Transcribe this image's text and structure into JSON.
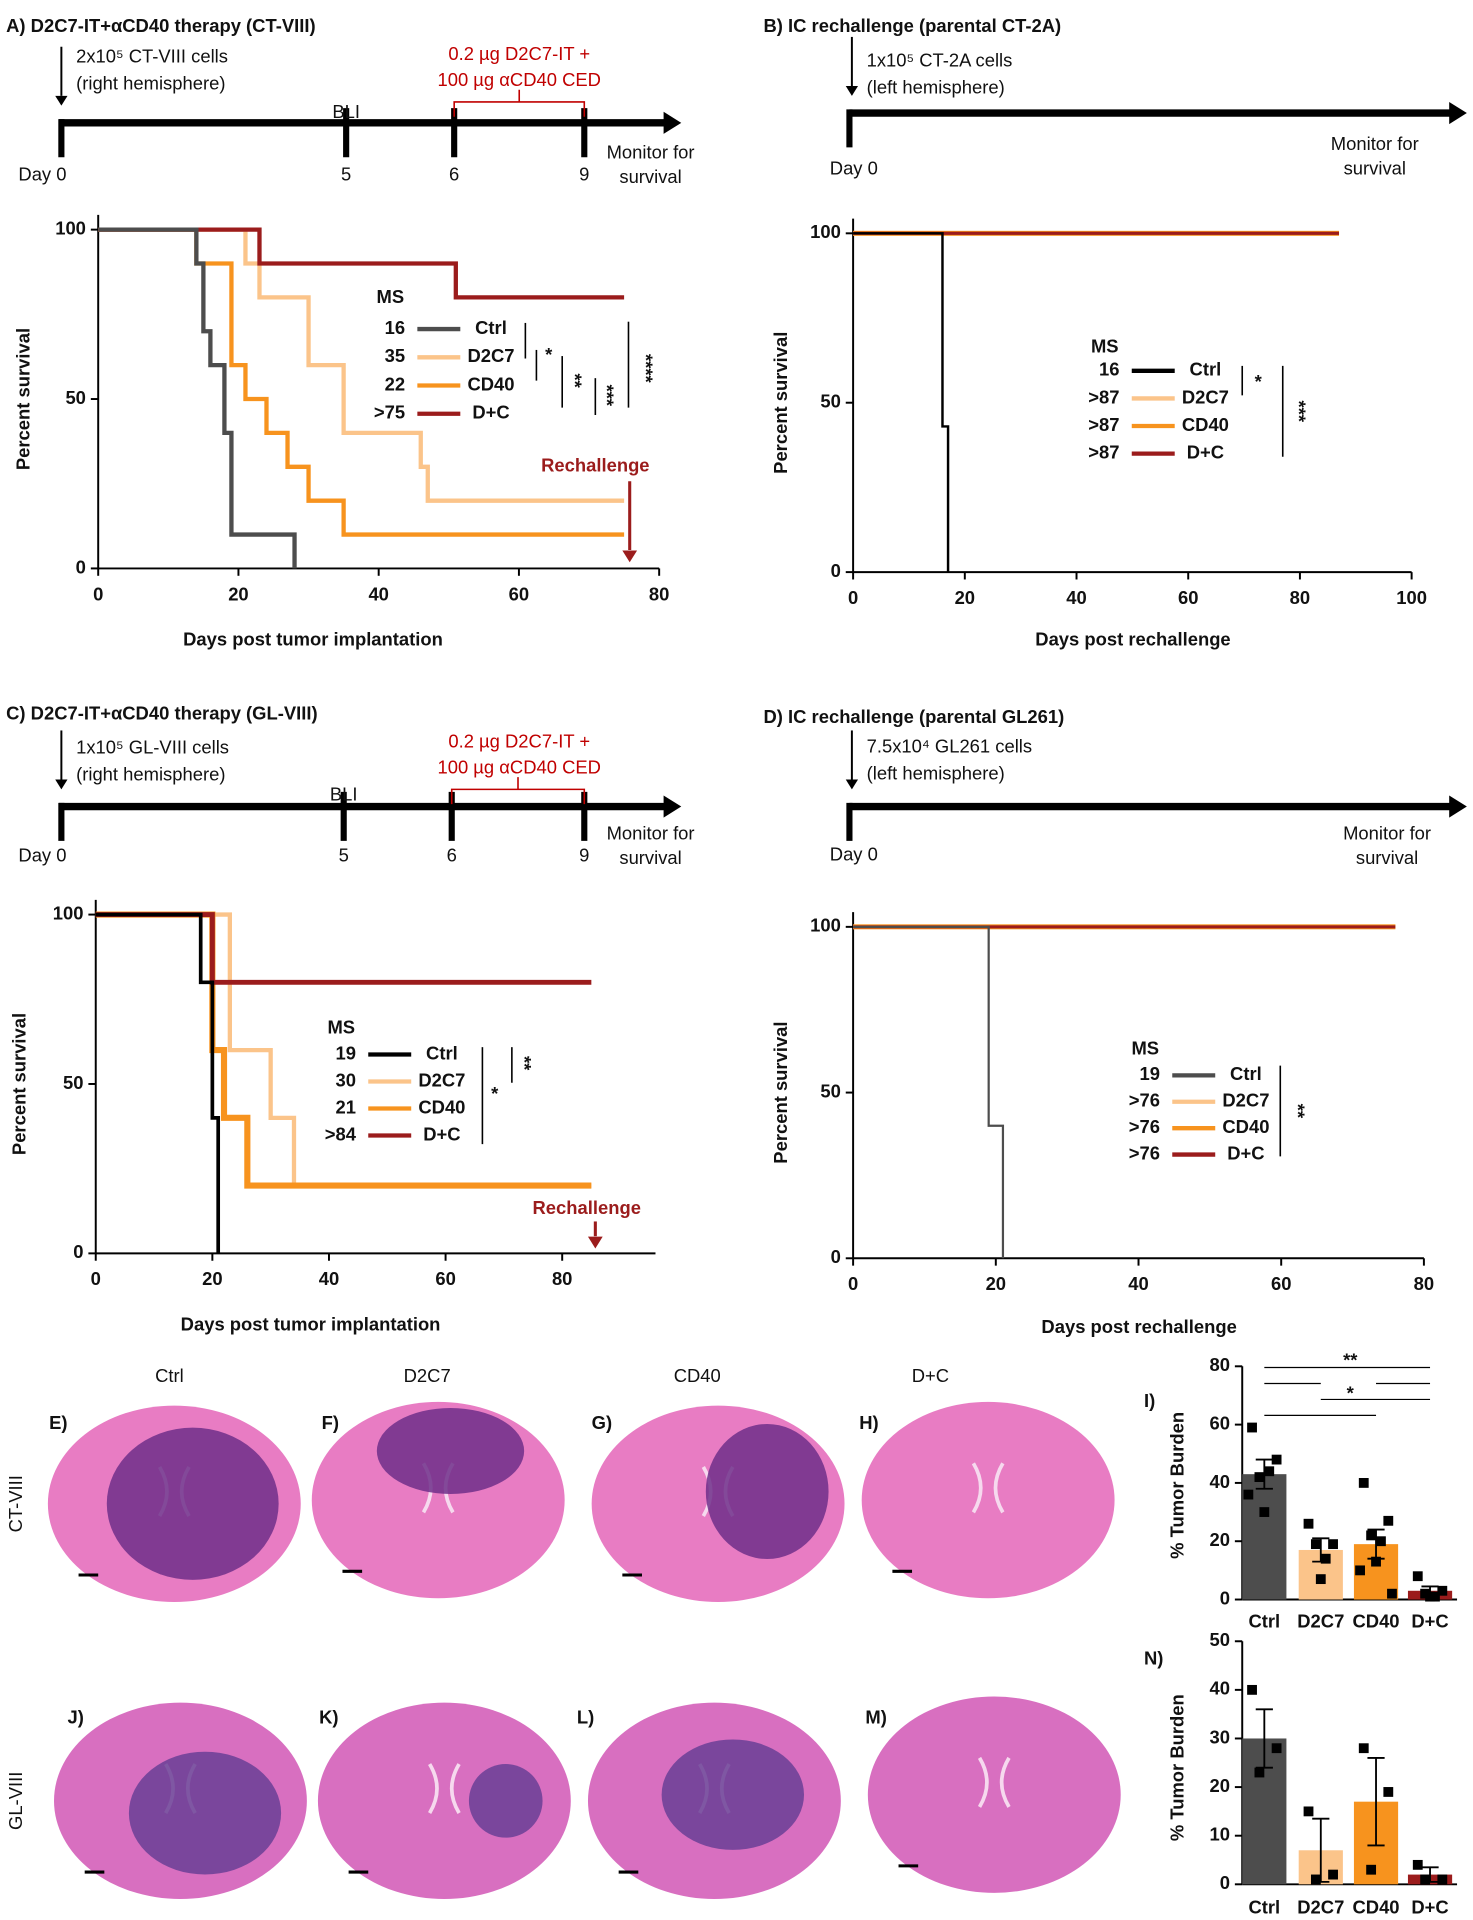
{
  "chart_data": [
    {
      "type": "survival",
      "title": "A) D2C7-IT+αCD40 therapy (CT-VIII)",
      "timeline": {
        "cells": [
          "2x10⁵ CT-VIII cells",
          "(right hemisphere)"
        ],
        "treatment": [
          "0.2 µg D2C7-IT +",
          "100 µg αCD40 CED"
        ],
        "imaging": "BLI",
        "days": [
          "Day 0",
          "5",
          "6",
          "9"
        ],
        "end": [
          "Monitor for",
          "survival"
        ]
      },
      "xlabel": "Days post tumor implantation",
      "ylabel": "Percent survival",
      "xlim": [
        0,
        80
      ],
      "xticks": [
        0,
        20,
        40,
        60,
        80
      ],
      "ylim": [
        0,
        100
      ],
      "yticks": [
        0,
        50,
        100
      ],
      "legend_title": "MS",
      "series": [
        {
          "name": "Ctrl",
          "color": "#4d4d4d",
          "median": "16",
          "x": [
            0,
            14,
            15,
            16,
            18,
            19,
            28
          ],
          "values": [
            100,
            90,
            70,
            60,
            40,
            10,
            0
          ]
        },
        {
          "name": "D2C7",
          "color": "#fbc48a",
          "median": "35",
          "x": [
            0,
            21,
            23,
            30,
            35,
            46,
            47,
            75
          ],
          "values": [
            100,
            90,
            80,
            60,
            40,
            30,
            20,
            20
          ]
        },
        {
          "name": "CD40",
          "color": "#f7931e",
          "median": "22",
          "x": [
            0,
            14,
            19,
            21,
            24,
            27,
            30,
            35,
            75
          ],
          "values": [
            100,
            90,
            60,
            50,
            40,
            30,
            20,
            10,
            10
          ]
        },
        {
          "name": "D+C",
          "color": "#9b1c1c",
          "median": ">75",
          "x": [
            0,
            23,
            51,
            75
          ],
          "values": [
            100,
            90,
            80,
            80
          ]
        }
      ],
      "significance": [
        "*",
        "**",
        "***",
        "****"
      ],
      "rechallenge": "Rechallenge"
    },
    {
      "type": "survival",
      "title": "B) IC rechallenge (parental CT-2A)",
      "timeline": {
        "cells": [
          "1x10⁵ CT-2A cells",
          "(left hemisphere)"
        ],
        "days": [
          "Day 0"
        ],
        "end": [
          "Monitor for",
          "survival"
        ]
      },
      "xlabel": "Days post rechallenge",
      "ylabel": "Percent survival",
      "xlim": [
        0,
        100
      ],
      "xticks": [
        0,
        20,
        40,
        60,
        80,
        100
      ],
      "ylim": [
        0,
        100
      ],
      "yticks": [
        0,
        50,
        100
      ],
      "legend_title": "MS",
      "series": [
        {
          "name": "Ctrl",
          "color": "#000000",
          "median": "16",
          "x": [
            0,
            16,
            17
          ],
          "values": [
            100,
            43,
            0
          ]
        },
        {
          "name": "D2C7",
          "color": "#fbc48a",
          "median": ">87",
          "x": [
            0,
            87
          ],
          "values": [
            100,
            100
          ]
        },
        {
          "name": "CD40",
          "color": "#f7931e",
          "median": ">87",
          "x": [
            0,
            87
          ],
          "values": [
            100,
            100
          ]
        },
        {
          "name": "D+C",
          "color": "#9b1c1c",
          "median": ">87",
          "x": [
            0,
            87
          ],
          "values": [
            100,
            100
          ]
        }
      ],
      "significance": [
        "*",
        "***"
      ]
    },
    {
      "type": "survival",
      "title": "C) D2C7-IT+αCD40 therapy (GL-VIII)",
      "timeline": {
        "cells": [
          "1x10⁵ GL-VIII cells",
          "(right hemisphere)"
        ],
        "treatment": [
          "0.2 µg D2C7-IT +",
          "100 µg αCD40 CED"
        ],
        "imaging": "BLI",
        "days": [
          "Day 0",
          "5",
          "6",
          "9"
        ],
        "end": [
          "Monitor for",
          "survival"
        ]
      },
      "xlabel": "Days post tumor implantation",
      "ylabel": "Percent survival",
      "xlim": [
        0,
        96
      ],
      "xticks": [
        0,
        20,
        40,
        60,
        80
      ],
      "ylim": [
        0,
        100
      ],
      "yticks": [
        0,
        50,
        100
      ],
      "legend_title": "MS",
      "series": [
        {
          "name": "Ctrl",
          "color": "#000000",
          "median": "19",
          "x": [
            0,
            18,
            20,
            21
          ],
          "values": [
            100,
            80,
            40,
            0
          ]
        },
        {
          "name": "D2C7",
          "color": "#fbc48a",
          "median": "30",
          "x": [
            0,
            23,
            30,
            34,
            85
          ],
          "values": [
            100,
            60,
            40,
            20,
            20
          ]
        },
        {
          "name": "CD40",
          "color": "#f7931e",
          "median": "21",
          "x": [
            0,
            20,
            22,
            26,
            85
          ],
          "values": [
            100,
            60,
            40,
            20,
            20
          ]
        },
        {
          "name": "D+C",
          "color": "#9b1c1c",
          "median": ">84",
          "x": [
            0,
            20,
            85
          ],
          "values": [
            100,
            80,
            80
          ]
        }
      ],
      "significance": [
        "*",
        "**"
      ],
      "rechallenge": "Rechallenge"
    },
    {
      "type": "survival",
      "title": "D) IC rechallenge (parental GL261)",
      "timeline": {
        "cells": [
          "7.5x10⁴ GL261 cells",
          "(left hemisphere)"
        ],
        "days": [
          "Day 0"
        ],
        "end": [
          "Monitor for",
          "survival"
        ]
      },
      "xlabel": "Days post rechallenge",
      "ylabel": "Percent survival",
      "xlim": [
        0,
        80
      ],
      "xticks": [
        0,
        20,
        40,
        60,
        80
      ],
      "ylim": [
        0,
        100
      ],
      "yticks": [
        0,
        50,
        100
      ],
      "legend_title": "MS",
      "series": [
        {
          "name": "Ctrl",
          "color": "#4d4d4d",
          "median": "19",
          "x": [
            0,
            19,
            21
          ],
          "values": [
            100,
            40,
            0
          ]
        },
        {
          "name": "D2C7",
          "color": "#fbc48a",
          "median": ">76",
          "x": [
            0,
            76
          ],
          "values": [
            100,
            100
          ]
        },
        {
          "name": "CD40",
          "color": "#f7931e",
          "median": ">76",
          "x": [
            0,
            76
          ],
          "values": [
            100,
            100
          ]
        },
        {
          "name": "D+C",
          "color": "#9b1c1c",
          "median": ">76",
          "x": [
            0,
            76
          ],
          "values": [
            100,
            100
          ]
        }
      ],
      "significance": [
        "**"
      ]
    },
    {
      "type": "bar",
      "title": "I)",
      "ylabel": "% Tumor Burden",
      "categories": [
        "Ctrl",
        "D2C7",
        "CD40",
        "D+C"
      ],
      "colors": [
        "#4d4d4d",
        "#fbc48a",
        "#f7931e",
        "#9b1c1c"
      ],
      "values": [
        43,
        17,
        19,
        3
      ],
      "errors": [
        5,
        4,
        5,
        1.5
      ],
      "points": [
        [
          59,
          48,
          42,
          44,
          30,
          36
        ],
        [
          26,
          19,
          19,
          14,
          7
        ],
        [
          40,
          27,
          22,
          20,
          13,
          10,
          2
        ],
        [
          8,
          3,
          2,
          1,
          1
        ]
      ],
      "ylim": [
        0,
        80
      ],
      "yticks": [
        0,
        20,
        40,
        60,
        80
      ],
      "significance": [
        "**",
        "*"
      ]
    },
    {
      "type": "bar",
      "title": "N)",
      "ylabel": "% Tumor Burden",
      "categories": [
        "Ctrl",
        "D2C7",
        "CD40",
        "D+C"
      ],
      "colors": [
        "#4d4d4d",
        "#fbc48a",
        "#f7931e",
        "#9b1c1c"
      ],
      "values": [
        30,
        7,
        17,
        2
      ],
      "errors": [
        6,
        6.5,
        9,
        1.5
      ],
      "points": [
        [
          40,
          28,
          23
        ],
        [
          15,
          2,
          1
        ],
        [
          28,
          19,
          3
        ],
        [
          4,
          1,
          1
        ]
      ],
      "ylim": [
        0,
        50
      ],
      "yticks": [
        0,
        10,
        20,
        30,
        40,
        50
      ]
    }
  ],
  "histology": {
    "columns": [
      "Ctrl",
      "D2C7",
      "CD40",
      "D+C"
    ],
    "rows": [
      {
        "label": "CT-VIII",
        "panels": [
          "E)",
          "F)",
          "G)",
          "H)"
        ]
      },
      {
        "label": "GL-VIII",
        "panels": [
          "J)",
          "K)",
          "L)",
          "M)"
        ]
      }
    ]
  }
}
